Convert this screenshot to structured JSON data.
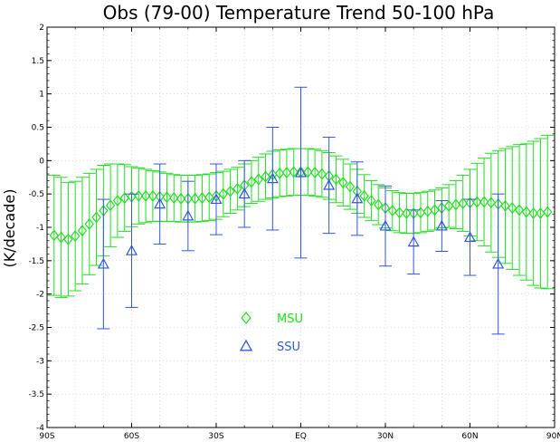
{
  "chart_data": {
    "type": "scatter",
    "title": "Obs (79-00) Temperature Trend  50-100 hPa",
    "xlabel": "",
    "ylabel": "(K/decade)",
    "xlim": [
      -90,
      90
    ],
    "ylim": [
      -4,
      2
    ],
    "x_ticks": [
      -90,
      -60,
      -30,
      0,
      30,
      60,
      90
    ],
    "x_tick_labels": [
      "90S",
      "60S",
      "30S",
      "EQ",
      "30N",
      "60N",
      "90N"
    ],
    "y_ticks": [
      2,
      1.5,
      1,
      0.5,
      0,
      -0.5,
      -1,
      -1.5,
      -2,
      -2.5,
      -3,
      -3.5,
      -4
    ],
    "y_tick_labels": [
      "2",
      "1.5",
      "1",
      "0.5",
      "0",
      "-0.5",
      "-1",
      "-1.5",
      "-2",
      "-2.5",
      "-3",
      "-3.5",
      "-4"
    ],
    "grid": true,
    "legend_position": "lower-center",
    "series": [
      {
        "name": "MSU",
        "color": "#22dd22",
        "marker": "diamond",
        "x": [
          -87.5,
          -85,
          -82.5,
          -80,
          -77.5,
          -75,
          -72.5,
          -70,
          -67.5,
          -65,
          -62.5,
          -60,
          -57.5,
          -55,
          -52.5,
          -50,
          -47.5,
          -45,
          -42.5,
          -40,
          -37.5,
          -35,
          -32.5,
          -30,
          -27.5,
          -25,
          -22.5,
          -20,
          -17.5,
          -15,
          -12.5,
          -10,
          -7.5,
          -5,
          -2.5,
          0,
          2.5,
          5,
          7.5,
          10,
          12.5,
          15,
          17.5,
          20,
          22.5,
          25,
          27.5,
          30,
          32.5,
          35,
          37.5,
          40,
          42.5,
          45,
          47.5,
          50,
          52.5,
          55,
          57.5,
          60,
          62.5,
          65,
          67.5,
          70,
          72.5,
          75,
          77.5,
          80,
          82.5,
          85,
          87.5
        ],
        "y": [
          -1.12,
          -1.15,
          -1.18,
          -1.13,
          -1.05,
          -0.95,
          -0.85,
          -0.75,
          -0.67,
          -0.6,
          -0.56,
          -0.54,
          -0.53,
          -0.53,
          -0.53,
          -0.54,
          -0.55,
          -0.56,
          -0.57,
          -0.57,
          -0.57,
          -0.56,
          -0.55,
          -0.53,
          -0.5,
          -0.46,
          -0.42,
          -0.37,
          -0.32,
          -0.28,
          -0.24,
          -0.21,
          -0.19,
          -0.18,
          -0.17,
          -0.17,
          -0.17,
          -0.18,
          -0.2,
          -0.23,
          -0.28,
          -0.33,
          -0.39,
          -0.46,
          -0.53,
          -0.6,
          -0.66,
          -0.71,
          -0.75,
          -0.78,
          -0.79,
          -0.79,
          -0.78,
          -0.76,
          -0.74,
          -0.71,
          -0.68,
          -0.66,
          -0.64,
          -0.63,
          -0.62,
          -0.62,
          -0.63,
          -0.65,
          -0.68,
          -0.71,
          -0.74,
          -0.77,
          -0.79,
          -0.79,
          -0.77
        ],
        "err": [
          0.9,
          0.9,
          0.85,
          0.82,
          0.8,
          0.76,
          0.72,
          0.68,
          0.62,
          0.55,
          0.5,
          0.45,
          0.42,
          0.4,
          0.38,
          0.37,
          0.36,
          0.35,
          0.35,
          0.35,
          0.35,
          0.35,
          0.35,
          0.35,
          0.34,
          0.33,
          0.32,
          0.32,
          0.32,
          0.33,
          0.34,
          0.35,
          0.35,
          0.35,
          0.35,
          0.35,
          0.35,
          0.35,
          0.35,
          0.35,
          0.35,
          0.35,
          0.34,
          0.33,
          0.32,
          0.3,
          0.3,
          0.3,
          0.3,
          0.3,
          0.3,
          0.3,
          0.3,
          0.3,
          0.3,
          0.3,
          0.32,
          0.36,
          0.42,
          0.5,
          0.58,
          0.66,
          0.74,
          0.8,
          0.86,
          0.92,
          0.98,
          1.02,
          1.08,
          1.12,
          1.15
        ]
      },
      {
        "name": "SSU",
        "color": "#3355dd",
        "marker": "triangle",
        "x": [
          -70,
          -60,
          -50,
          -40,
          -30,
          -20,
          -10,
          0,
          10,
          20,
          30,
          40,
          50,
          60,
          70
        ],
        "y": [
          -1.55,
          -1.35,
          -0.65,
          -0.83,
          -0.58,
          -0.5,
          -0.27,
          -0.18,
          -0.37,
          -0.57,
          -0.98,
          -1.22,
          -0.98,
          -1.15,
          -1.55
        ],
        "err": [
          0.97,
          0.85,
          0.6,
          0.52,
          0.53,
          0.5,
          0.77,
          1.28,
          0.72,
          0.55,
          0.6,
          0.48,
          0.38,
          0.57,
          1.05
        ]
      }
    ]
  }
}
